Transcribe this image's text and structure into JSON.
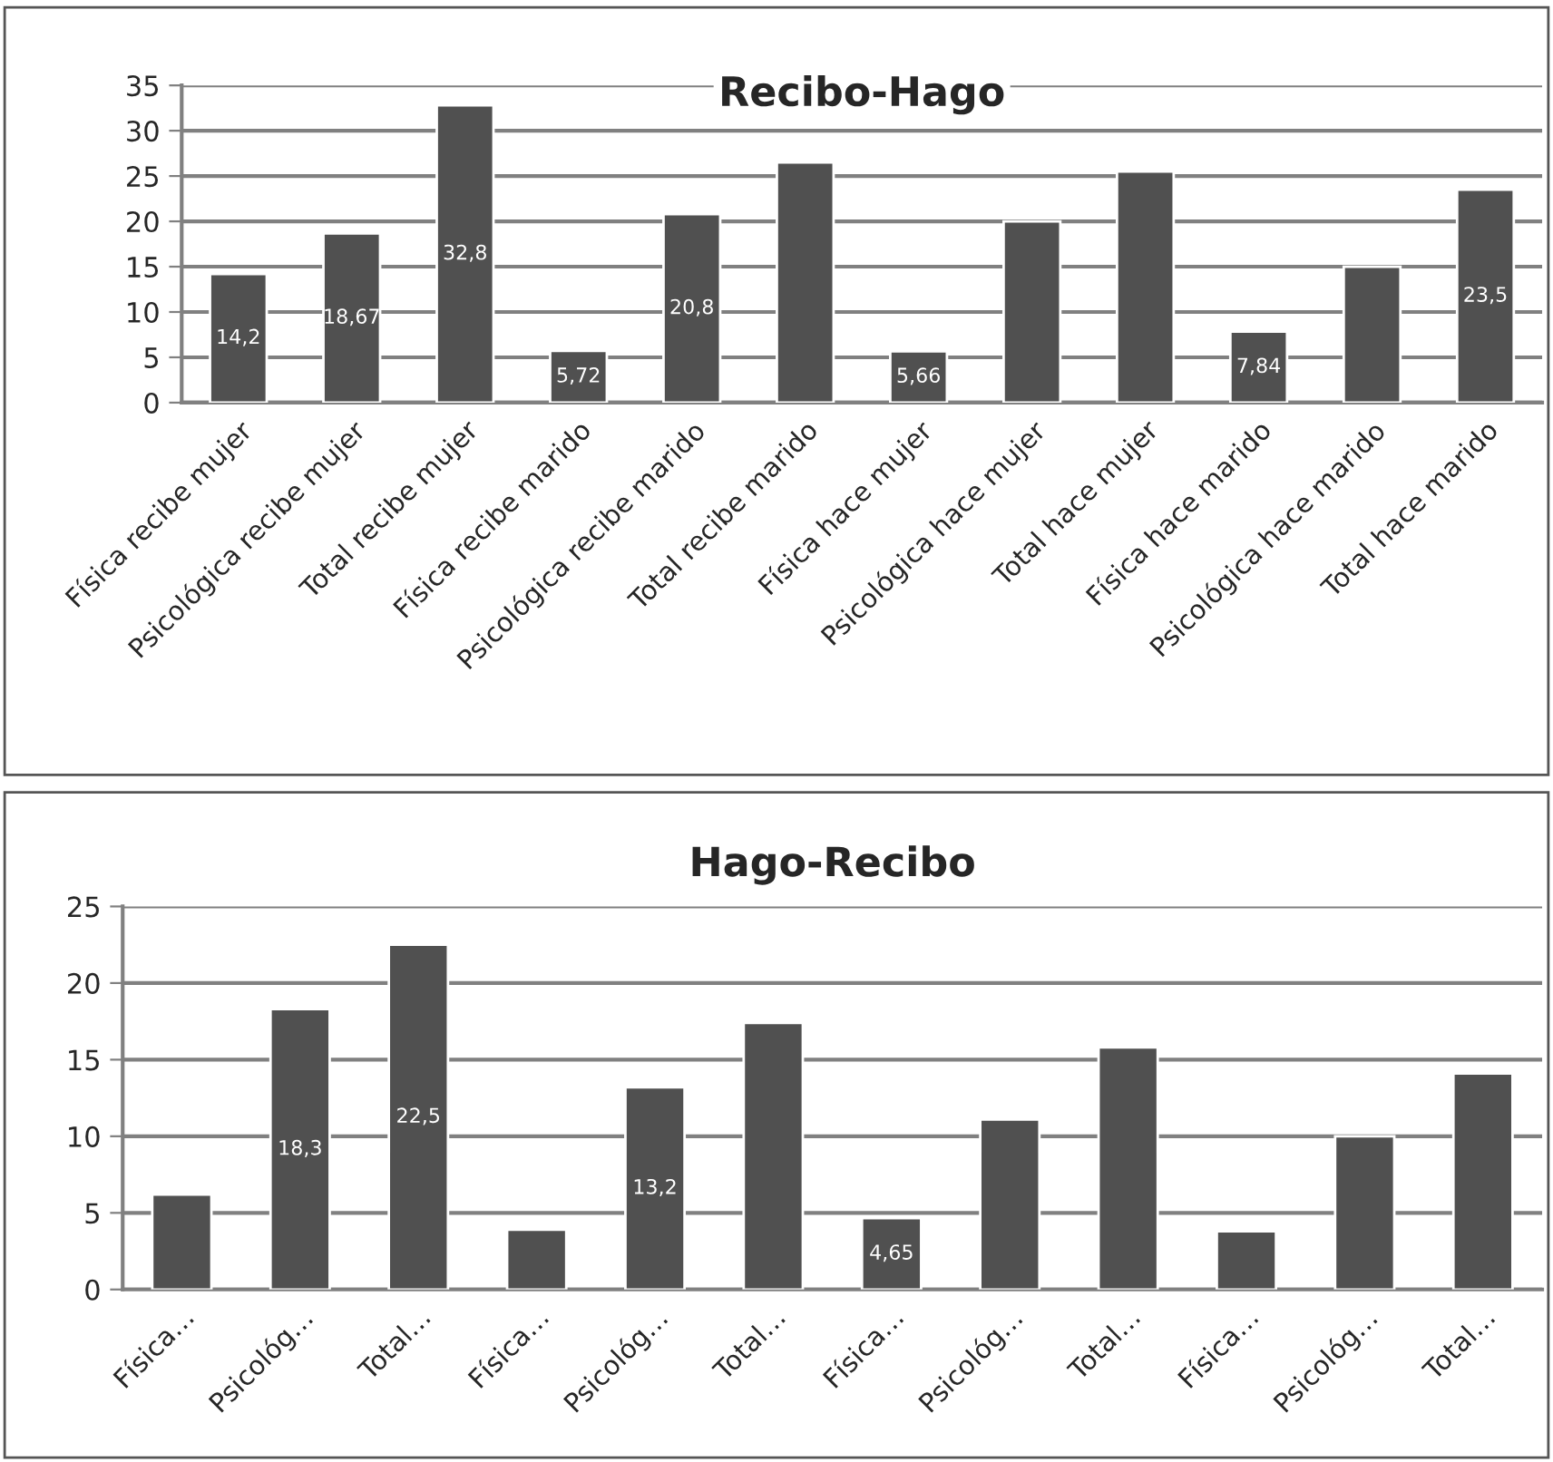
{
  "chart_data": [
    {
      "type": "bar",
      "title": "Recibo-Hago",
      "categories": [
        "Física recibe mujer",
        "Psicológica recibe mujer",
        "Total recibe mujer",
        "Física recibe marido",
        "Psicológica recibe marido",
        "Total recibe marido",
        "Física hace mujer",
        "Psicológica hace mujer",
        "Total hace mujer",
        "Física hace marido",
        "Psicológica hace marido",
        "Total hace marido"
      ],
      "values": [
        14.2,
        18.67,
        32.8,
        5.72,
        20.8,
        26.5,
        5.66,
        20.0,
        25.5,
        7.84,
        15.0,
        23.5
      ],
      "value_labels": [
        "14,2",
        "18,67",
        "32,8",
        "5,72",
        "20,8",
        null,
        "5,66",
        null,
        null,
        "7,84",
        null,
        "23,5"
      ],
      "color": "#505050",
      "ylim": [
        0,
        35
      ],
      "yticks": [
        0,
        5,
        10,
        15,
        20,
        25,
        30,
        35
      ],
      "grid": "y"
    },
    {
      "type": "bar",
      "title": "Hago-Recibo",
      "categories": [
        "Física…",
        "Psicológ…",
        "Total…",
        "Física…",
        "Psicológ…",
        "Total…",
        "Física…",
        "Psicológ…",
        "Total…",
        "Física…",
        "Psicológ…",
        "Total…"
      ],
      "values": [
        6.2,
        18.3,
        22.5,
        3.9,
        13.2,
        17.4,
        4.65,
        11.1,
        15.8,
        3.8,
        10.0,
        14.1
      ],
      "value_labels": [
        null,
        "18,3",
        "22,5",
        null,
        "13,2",
        null,
        "4,65",
        null,
        null,
        null,
        null,
        null
      ],
      "color": "#505050",
      "ylim": [
        0,
        25
      ],
      "yticks": [
        0,
        5,
        10,
        15,
        20,
        25
      ],
      "grid": "y"
    }
  ]
}
